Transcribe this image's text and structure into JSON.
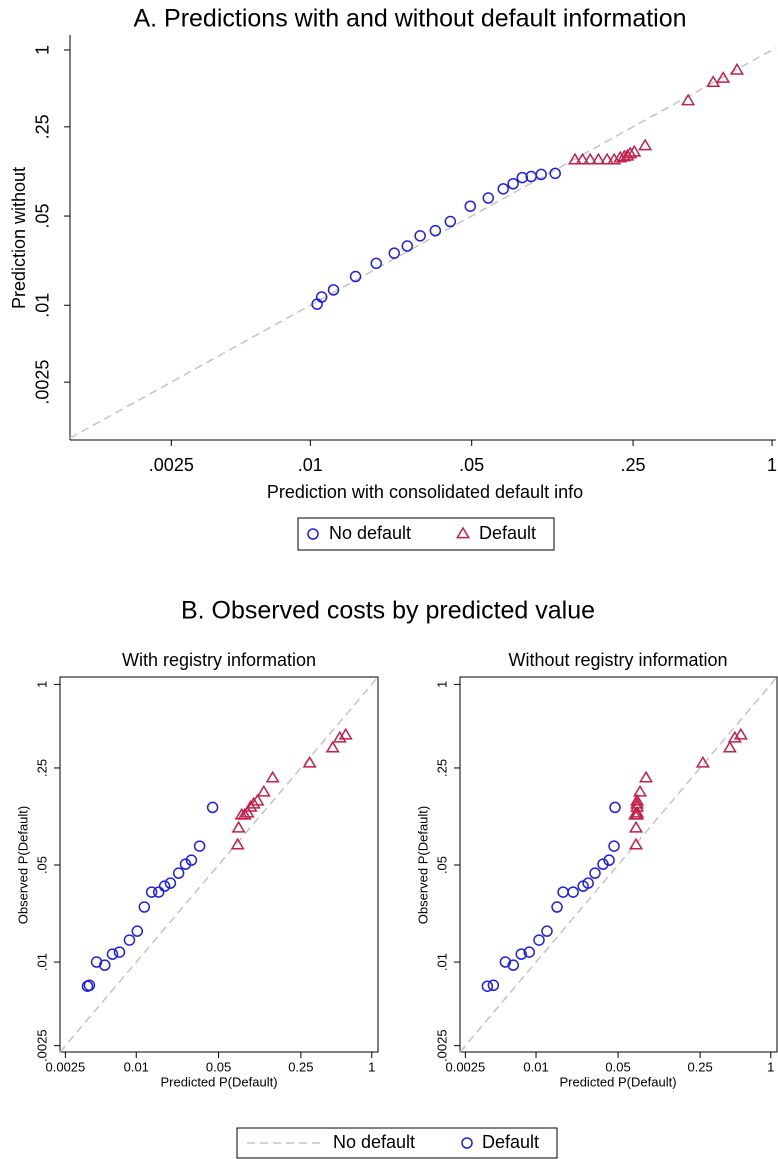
{
  "chart_data": [
    {
      "type": "scatter",
      "title": "A. Predictions with and without default information",
      "x_label": "Prediction with consolidated default info",
      "y_label": "Prediction without",
      "x_log": true,
      "y_log": true,
      "diagonal_line": {
        "color": "#c4c4c4",
        "dashed": true
      },
      "legend_position": "bottom",
      "xlim": [
        0.00091,
        1.04
      ],
      "ylim": [
        0.00088,
        1.31
      ],
      "xticks": [
        {
          "value": 0.0025,
          "label": ".0025"
        },
        {
          "value": 0.01,
          "label": ".01"
        },
        {
          "value": 0.05,
          "label": ".05"
        },
        {
          "value": 0.25,
          "label": ".25"
        },
        1
      ],
      "yticks": [
        {
          "value": 0.0025,
          "label": ".0025"
        },
        {
          "value": 0.01,
          "label": ".01"
        },
        {
          "value": 0.05,
          "label": ".05"
        },
        {
          "value": 0.25,
          "label": ".25"
        },
        1
      ],
      "series": [
        {
          "name": "No default",
          "marker": "circle",
          "color": "#1f1fe6",
          "x": [
            0.0107,
            0.0112,
            0.0126,
            0.0157,
            0.0193,
            0.0231,
            0.0263,
            0.0299,
            0.0348,
            0.0404,
            0.0493,
            0.059,
            0.0685,
            0.0756,
            0.0828,
            0.0905,
            0.1,
            0.115
          ],
          "values": [
            0.0102,
            0.0116,
            0.0132,
            0.0168,
            0.0213,
            0.0256,
            0.0291,
            0.035,
            0.0384,
            0.0453,
            0.0597,
            0.0692,
            0.0817,
            0.0895,
            0.1,
            0.102,
            0.106,
            0.108
          ]
        },
        {
          "name": "Default",
          "marker": "triangle",
          "color": "#c41e4a",
          "x": [
            0.14,
            0.151,
            0.163,
            0.177,
            0.193,
            0.207,
            0.22,
            0.229,
            0.236,
            0.243,
            0.253,
            0.282,
            0.433,
            0.556,
            0.614,
            0.705
          ],
          "values": [
            0.137,
            0.137,
            0.137,
            0.137,
            0.137,
            0.137,
            0.142,
            0.145,
            0.147,
            0.153,
            0.158,
            0.177,
            0.398,
            0.555,
            0.597,
            0.692
          ]
        }
      ]
    },
    {
      "type": "scatter",
      "title": "With registry information",
      "x_label": "Predicted P(Default)",
      "y_label": "Observed P(Default)",
      "x_log": true,
      "y_log": true,
      "diagonal_line": {
        "color": "#c4c4c4",
        "dashed": true
      },
      "xlim": [
        0.00225,
        1.13
      ],
      "ylim": [
        0.00225,
        1.13
      ],
      "xticks": [
        0.0025,
        0.01,
        0.05,
        0.25,
        1
      ],
      "yticks": [
        {
          "value": 0.0025,
          "label": ".0025"
        },
        {
          "value": 0.01,
          "label": ".01"
        },
        {
          "value": 0.05,
          "label": ".05"
        },
        {
          "value": 0.25,
          "label": ".25"
        },
        1
      ],
      "series": [
        {
          "marker": "circle",
          "color": "#1f1fe6",
          "x": [
            0.00385,
            0.004,
            0.0046,
            0.0054,
            0.00628,
            0.0072,
            0.00875,
            0.0102,
            0.0117,
            0.0135,
            0.0155,
            0.0174,
            0.0195,
            0.0229,
            0.0262,
            0.0294,
            0.0345,
            0.0445
          ],
          "values": [
            0.0067,
            0.0068,
            0.01,
            0.0095,
            0.0114,
            0.0118,
            0.0144,
            0.0167,
            0.0249,
            0.0319,
            0.0319,
            0.0352,
            0.037,
            0.0437,
            0.0507,
            0.0542,
            0.0684,
            0.13
          ]
        },
        {
          "marker": "triangle",
          "color": "#c41e4a",
          "x": [
            0.0726,
            0.074,
            0.0785,
            0.0832,
            0.0883,
            0.0935,
            0.0993,
            0.107,
            0.121,
            0.144,
            0.297,
            0.466,
            0.535,
            0.601
          ],
          "values": [
            0.0695,
            0.092,
            0.114,
            0.114,
            0.118,
            0.13,
            0.137,
            0.144,
            0.167,
            0.211,
            0.27,
            0.347,
            0.409,
            0.43
          ]
        }
      ]
    },
    {
      "type": "scatter",
      "title": "Without registry information",
      "x_label": "Predicted P(Default)",
      "y_label": "Observed P(Default)",
      "x_log": true,
      "y_log": true,
      "diagonal_line": {
        "color": "#c4c4c4",
        "dashed": true
      },
      "xlim": [
        0.00225,
        1.13
      ],
      "ylim": [
        0.00225,
        1.13
      ],
      "xticks": [
        0.0025,
        0.01,
        0.05,
        0.25,
        1
      ],
      "yticks": [
        {
          "value": 0.0025,
          "label": ".0025"
        },
        {
          "value": 0.01,
          "label": ".01"
        },
        {
          "value": 0.05,
          "label": ".05"
        },
        {
          "value": 0.25,
          "label": ".25"
        },
        1
      ],
      "series": [
        {
          "marker": "circle",
          "color": "#1f1fe6",
          "x": [
            0.00385,
            0.00433,
            0.00548,
            0.0064,
            0.00748,
            0.00875,
            0.0106,
            0.0124,
            0.0151,
            0.017,
            0.0207,
            0.0252,
            0.0278,
            0.0318,
            0.0372,
            0.0419,
            0.0462,
            0.0471
          ],
          "values": [
            0.0067,
            0.0068,
            0.01,
            0.0095,
            0.0114,
            0.0118,
            0.0144,
            0.0167,
            0.0249,
            0.0319,
            0.0319,
            0.0352,
            0.037,
            0.0437,
            0.0507,
            0.0542,
            0.0684,
            0.13
          ]
        },
        {
          "marker": "triangle",
          "color": "#c41e4a",
          "x": [
            0.0711,
            0.0711,
            0.0698,
            0.0726,
            0.0726,
            0.0726,
            0.0726,
            0.0726,
            0.0769,
            0.0865,
            0.264,
            0.448,
            0.494,
            0.556
          ],
          "values": [
            0.0695,
            0.092,
            0.114,
            0.114,
            0.118,
            0.13,
            0.137,
            0.144,
            0.167,
            0.211,
            0.27,
            0.347,
            0.409,
            0.43
          ]
        }
      ]
    }
  ],
  "panel_b": {
    "title": "B. Observed costs by predicted value",
    "legend": [
      {
        "label": "No default",
        "mark": "dashed-line",
        "color": "#c4c4c4"
      },
      {
        "label": "Default",
        "mark": "circle",
        "color": "#1f1fe6"
      }
    ]
  }
}
